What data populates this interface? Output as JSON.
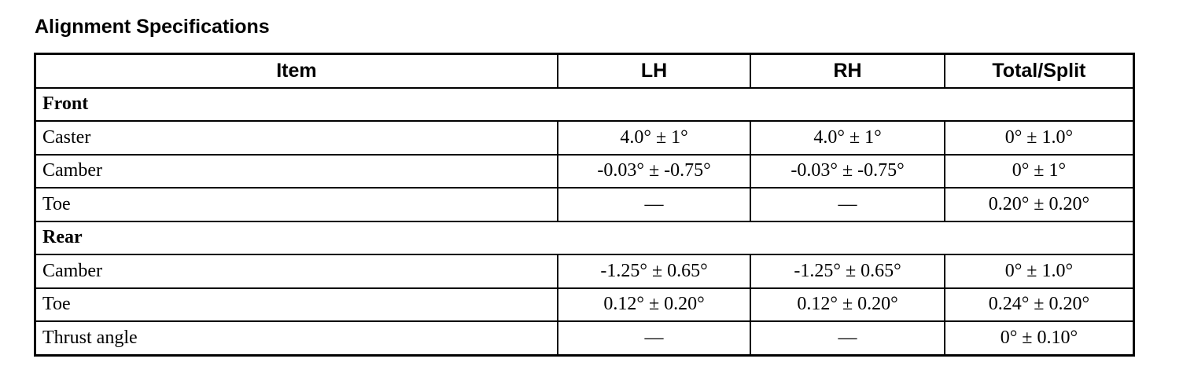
{
  "title": "Alignment Specifications",
  "headers": [
    "Item",
    "LH",
    "RH",
    "Total/Split"
  ],
  "sections": [
    {
      "name": "Front",
      "rows": [
        [
          "Caster",
          "4.0° ± 1°",
          "4.0° ± 1°",
          "0° ± 1.0°"
        ],
        [
          "Camber",
          "-0.03° ± -0.75°",
          "-0.03° ± -0.75°",
          "0° ± 1°"
        ],
        [
          "Toe",
          "—",
          "—",
          "0.20° ± 0.20°"
        ]
      ]
    },
    {
      "name": "Rear",
      "rows": [
        [
          "Camber",
          "-1.25° ± 0.65°",
          "-1.25° ± 0.65°",
          "0° ± 1.0°"
        ],
        [
          "Toe",
          "0.12° ± 0.20°",
          "0.12° ± 0.20°",
          "0.24° ± 0.20°"
        ],
        [
          "Thrust angle",
          "—",
          "—",
          "0° ± 0.10°"
        ]
      ]
    }
  ]
}
